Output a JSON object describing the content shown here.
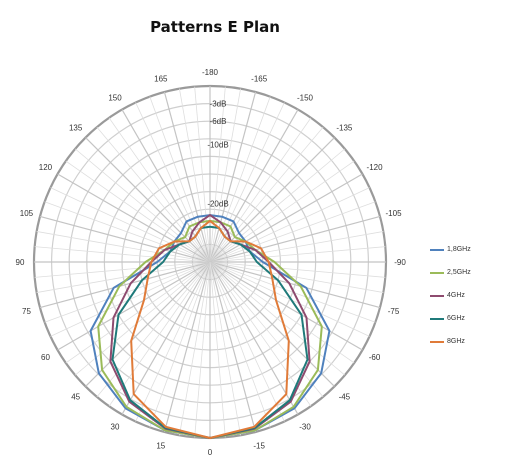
{
  "chart_data": {
    "type": "polar-line",
    "title": "Patterns E Plan",
    "angle_labels": [
      "-180",
      "-165",
      "-150",
      "-135",
      "-120",
      "-105",
      "-90",
      "-75",
      "-60",
      "-45",
      "-30",
      "-15",
      "0",
      "15",
      "30",
      "45",
      "60",
      "75",
      "90",
      "105",
      "120",
      "135",
      "150",
      "165"
    ],
    "angle_values": [
      -180,
      -165,
      -150,
      -135,
      -120,
      -105,
      -90,
      -75,
      -60,
      -45,
      -30,
      -15,
      0,
      15,
      30,
      45,
      60,
      75,
      90,
      105,
      120,
      135,
      150,
      165
    ],
    "radial_unit": "dB",
    "radial_ticks": [
      -3,
      -6,
      -10,
      -20
    ],
    "radial_labels": [
      "-3dB",
      "-6dB",
      "-10dB",
      "-20dB"
    ],
    "radial_range": [
      -30,
      0
    ],
    "grid": true,
    "legend_position": "right",
    "series": [
      {
        "name": "1,8GHz",
        "color": "#4f81bd",
        "angles": [
          -180,
          -165,
          -150,
          -135,
          -120,
          -105,
          -90,
          -75,
          -60,
          -45,
          -30,
          -15,
          0,
          15,
          30,
          45,
          60,
          75,
          90,
          105,
          120,
          135,
          150,
          165
        ],
        "values": [
          -22,
          -22,
          -22,
          -23,
          -23,
          -23,
          -21,
          -13,
          -6.5,
          -3.2,
          -1.2,
          -0.3,
          0,
          -0.3,
          -1.2,
          -3.2,
          -6.5,
          -13,
          -21,
          -23,
          -23,
          -23,
          -22,
          -22
        ]
      },
      {
        "name": "2,5GHz",
        "color": "#9bbb59",
        "angles": [
          -180,
          -165,
          -150,
          -135,
          -120,
          -105,
          -90,
          -75,
          -60,
          -45,
          -30,
          -15,
          0,
          15,
          30,
          45,
          60,
          75,
          90,
          105,
          120,
          135,
          150,
          165
        ],
        "values": [
          -23,
          -23,
          -23,
          -24,
          -23,
          -22,
          -19,
          -14,
          -8,
          -4,
          -1.5,
          -0.3,
          0,
          -0.3,
          -1.5,
          -4,
          -8,
          -14,
          -19,
          -22,
          -23,
          -24,
          -23,
          -23
        ]
      },
      {
        "name": "4GHz",
        "color": "#8e4b6f",
        "angles": [
          -180,
          -165,
          -150,
          -135,
          -120,
          -105,
          -90,
          -75,
          -60,
          -45,
          -30,
          -15,
          0,
          15,
          30,
          45,
          60,
          75,
          90,
          105,
          120,
          135,
          150,
          165
        ],
        "values": [
          -22,
          -23,
          -24,
          -25,
          -24,
          -22,
          -20,
          -16,
          -11,
          -6,
          -2.5,
          -0.6,
          0,
          -0.6,
          -2.5,
          -6,
          -11,
          -16,
          -20,
          -22,
          -24,
          -25,
          -24,
          -23
        ]
      },
      {
        "name": "6GHz",
        "color": "#1f7a7a",
        "angles": [
          -180,
          -165,
          -150,
          -135,
          -120,
          -105,
          -90,
          -75,
          -60,
          -45,
          -30,
          -15,
          0,
          15,
          30,
          45,
          60,
          75,
          90,
          105,
          120,
          135,
          150,
          165
        ],
        "values": [
          -24,
          -24,
          -25,
          -25,
          -24,
          -23,
          -22,
          -18,
          -12,
          -6.5,
          -2.8,
          -0.7,
          0,
          -0.7,
          -2.8,
          -6.5,
          -12,
          -18,
          -22,
          -23,
          -24,
          -25,
          -25,
          -24
        ]
      },
      {
        "name": "8GHz",
        "color": "#e07b39",
        "angles": [
          -180,
          -165,
          -150,
          -135,
          -120,
          -105,
          -90,
          -75,
          -60,
          -45,
          -30,
          -15,
          0,
          15,
          30,
          45,
          60,
          75,
          90,
          105,
          120,
          135,
          150,
          165
        ],
        "values": [
          -23,
          -24,
          -25,
          -25,
          -23,
          -21,
          -20,
          -19,
          -17,
          -11,
          -4,
          -0.9,
          0,
          -0.9,
          -4,
          -11,
          -17,
          -19,
          -20,
          -21,
          -23,
          -25,
          -25,
          -24
        ]
      }
    ]
  }
}
